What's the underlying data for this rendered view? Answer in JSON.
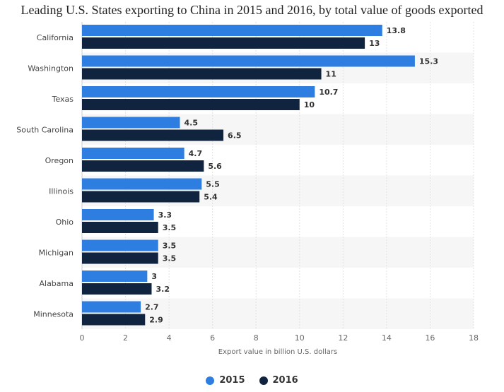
{
  "title": "Leading U.S. States exporting to China in 2015 and 2016, by total value of goods exported",
  "chart_data": {
    "type": "bar",
    "orientation": "horizontal",
    "categories": [
      "California",
      "Washington",
      "Texas",
      "South Carolina",
      "Oregon",
      "Illinois",
      "Ohio",
      "Michigan",
      "Alabama",
      "Minnesota"
    ],
    "series": [
      {
        "name": "2015",
        "color": "#2d7ee0",
        "values": [
          13.8,
          15.3,
          10.7,
          4.5,
          4.7,
          5.5,
          3.3,
          3.5,
          3,
          2.7
        ]
      },
      {
        "name": "2016",
        "color": "#10243f",
        "values": [
          13,
          11,
          10,
          6.5,
          5.6,
          5.4,
          3.5,
          3.5,
          3.2,
          2.9
        ]
      }
    ],
    "xlabel": "Export value in billion U.S. dollars",
    "ylabel": "",
    "xlim": [
      0,
      18
    ],
    "xticks": [
      0,
      2,
      4,
      6,
      8,
      10,
      12,
      14,
      16,
      18
    ],
    "grid": true,
    "legend_position": "bottom"
  }
}
